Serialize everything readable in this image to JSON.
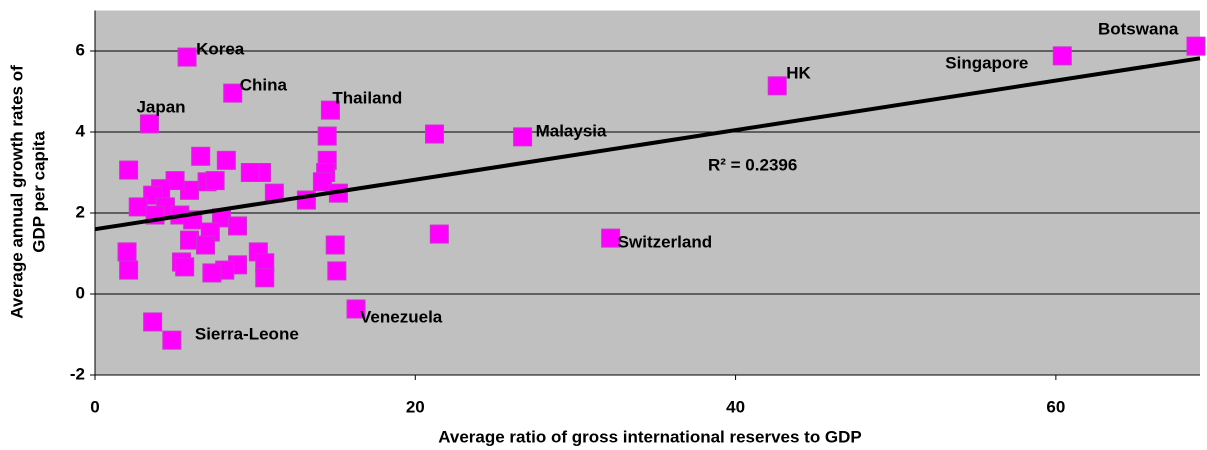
{
  "chart_data": {
    "type": "scatter",
    "x_label": "Average ratio of gross international reserves to GDP",
    "y_label": [
      "Average annual growth rates of",
      "GDP per capita"
    ],
    "xlim": [
      0,
      69
    ],
    "xticks": [
      0,
      20,
      40,
      60
    ],
    "ylim": [
      -2,
      7
    ],
    "yticks": [
      -2,
      0,
      2,
      4,
      6
    ],
    "grid": true,
    "color": "#ff00ff",
    "x": [
      5.75,
      8.6,
      3.4,
      14.7,
      42.6,
      60.4,
      68.75,
      26.7,
      32.2,
      16.3,
      4.8,
      3.6,
      21.2,
      21.5,
      14.5,
      14.5,
      14.4,
      14.2,
      15.2,
      13.2,
      11.2,
      10.4,
      9.7,
      8.2,
      6.6,
      7.0,
      7.5,
      5.9,
      5.0,
      4.1,
      2.1,
      3.6,
      2.7,
      4.4,
      5.3,
      6.1,
      7.9,
      8.9,
      7.2,
      5.9,
      6.9,
      10.2,
      10.6,
      8.9,
      8.1,
      7.3,
      5.4,
      5.6,
      10.6,
      15.0,
      15.1,
      2.0,
      2.1,
      3.75
    ],
    "values": [
      5.85,
      4.96,
      4.2,
      4.54,
      5.14,
      5.88,
      6.12,
      3.88,
      1.38,
      -0.37,
      -1.14,
      -0.69,
      3.95,
      1.48,
      3.9,
      3.3,
      3.0,
      2.77,
      2.49,
      2.32,
      2.49,
      3.0,
      3.0,
      3.3,
      3.4,
      2.77,
      2.8,
      2.56,
      2.8,
      2.6,
      3.06,
      2.44,
      2.15,
      2.15,
      1.95,
      1.83,
      1.88,
      1.68,
      1.53,
      1.33,
      1.21,
      1.04,
      0.77,
      0.72,
      0.59,
      0.52,
      0.79,
      0.67,
      0.4,
      1.21,
      0.57,
      1.04,
      0.59,
      1.95
    ],
    "labels": [
      "Korea",
      "China",
      "Japan",
      "Thailand",
      "HK",
      "Singapore",
      "Botswana",
      "Malaysia",
      "Switzerland",
      "Venezuela",
      "Sierra-Leone",
      null,
      null,
      null,
      null,
      null,
      null,
      null,
      null,
      null,
      null,
      null,
      null,
      null,
      null,
      null,
      null,
      null,
      null,
      null,
      null,
      null,
      null,
      null,
      null,
      null,
      null,
      null,
      null,
      null,
      null,
      null,
      null,
      null,
      null,
      null,
      null,
      null,
      null,
      null,
      null,
      null,
      null,
      null
    ],
    "trendline": {
      "x": [
        0,
        69
      ],
      "values": [
        1.6,
        5.82
      ],
      "label": "R² = 0.2396"
    }
  }
}
